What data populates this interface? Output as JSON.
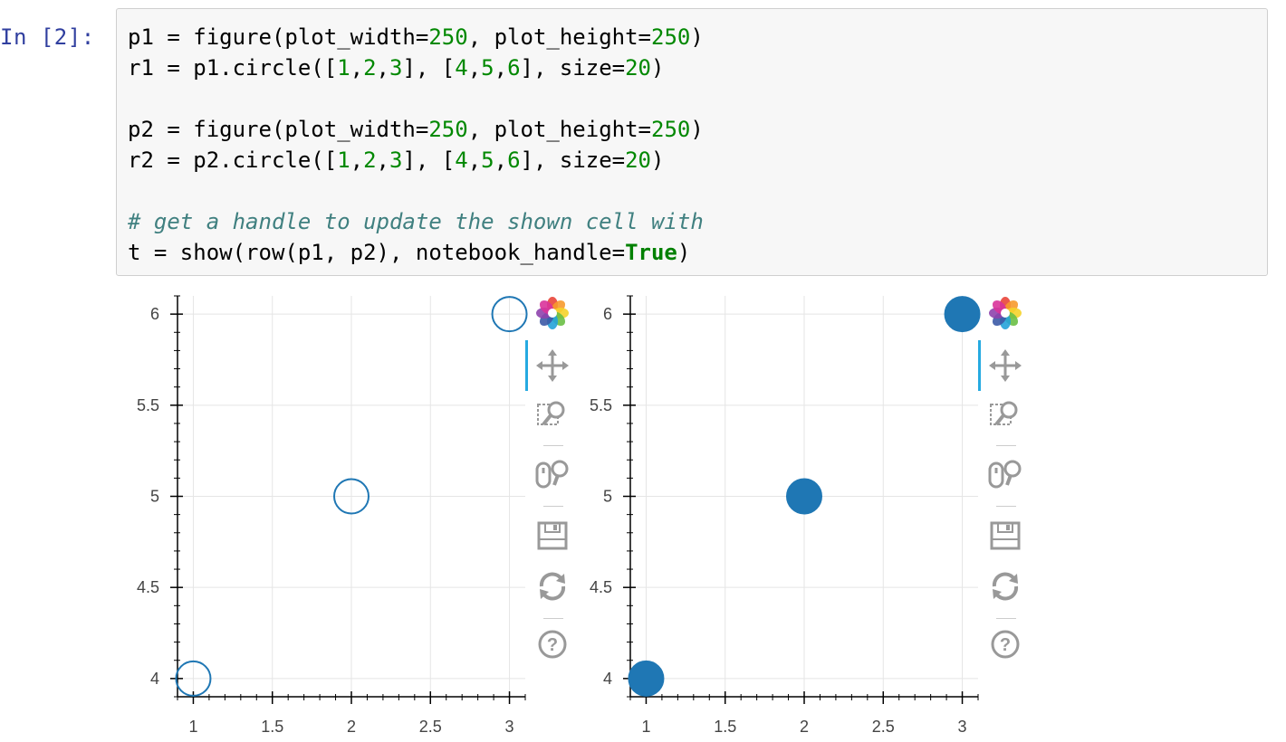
{
  "cell": {
    "prompt": "In [2]:",
    "code_lines": [
      [
        {
          "t": "p1 = figure(plot_width=",
          "c": "n"
        },
        {
          "t": "250",
          "c": "num"
        },
        {
          "t": ", plot_height=",
          "c": "n"
        },
        {
          "t": "250",
          "c": "num"
        },
        {
          "t": ")",
          "c": "n"
        }
      ],
      [
        {
          "t": "r1 = p1.circle([",
          "c": "n"
        },
        {
          "t": "1",
          "c": "num"
        },
        {
          "t": ",",
          "c": "n"
        },
        {
          "t": "2",
          "c": "num"
        },
        {
          "t": ",",
          "c": "n"
        },
        {
          "t": "3",
          "c": "num"
        },
        {
          "t": "], [",
          "c": "n"
        },
        {
          "t": "4",
          "c": "num"
        },
        {
          "t": ",",
          "c": "n"
        },
        {
          "t": "5",
          "c": "num"
        },
        {
          "t": ",",
          "c": "n"
        },
        {
          "t": "6",
          "c": "num"
        },
        {
          "t": "], size=",
          "c": "n"
        },
        {
          "t": "20",
          "c": "num"
        },
        {
          "t": ")",
          "c": "n"
        }
      ],
      [],
      [
        {
          "t": "p2 = figure(plot_width=",
          "c": "n"
        },
        {
          "t": "250",
          "c": "num"
        },
        {
          "t": ", plot_height=",
          "c": "n"
        },
        {
          "t": "250",
          "c": "num"
        },
        {
          "t": ")",
          "c": "n"
        }
      ],
      [
        {
          "t": "r2 = p2.circle([",
          "c": "n"
        },
        {
          "t": "1",
          "c": "num"
        },
        {
          "t": ",",
          "c": "n"
        },
        {
          "t": "2",
          "c": "num"
        },
        {
          "t": ",",
          "c": "n"
        },
        {
          "t": "3",
          "c": "num"
        },
        {
          "t": "], [",
          "c": "n"
        },
        {
          "t": "4",
          "c": "num"
        },
        {
          "t": ",",
          "c": "n"
        },
        {
          "t": "5",
          "c": "num"
        },
        {
          "t": ",",
          "c": "n"
        },
        {
          "t": "6",
          "c": "num"
        },
        {
          "t": "], size=",
          "c": "n"
        },
        {
          "t": "20",
          "c": "num"
        },
        {
          "t": ")",
          "c": "n"
        }
      ],
      [],
      [
        {
          "t": "# get a handle to update the shown cell with",
          "c": "cm"
        }
      ],
      [
        {
          "t": "t = show(row(p1, p2), notebook_handle=",
          "c": "n"
        },
        {
          "t": "True",
          "c": "kw"
        },
        {
          "t": ")",
          "c": "n"
        }
      ]
    ]
  },
  "toolbar": {
    "tools": [
      {
        "name": "bokeh-logo-icon"
      },
      {
        "name": "pan-tool-icon",
        "active": true
      },
      {
        "name": "box-zoom-tool-icon"
      },
      {
        "name": "wheel-zoom-tool-icon"
      },
      {
        "name": "save-tool-icon"
      },
      {
        "name": "reset-tool-icon"
      },
      {
        "name": "help-tool-icon"
      }
    ],
    "active_color": "#26aae1"
  },
  "chart_data": [
    {
      "type": "scatter",
      "marker": "circle-outline",
      "color": "#1f77b4",
      "x": [
        1,
        2,
        3
      ],
      "y": [
        4,
        5,
        6
      ],
      "x_ticks": [
        "1",
        "1.5",
        "2",
        "2.5",
        "3"
      ],
      "y_ticks": [
        "4",
        "4.5",
        "5",
        "5.5",
        "6"
      ],
      "xlim": [
        0.9,
        3.1
      ],
      "ylim": [
        3.9,
        6.1
      ],
      "grid": true
    },
    {
      "type": "scatter",
      "marker": "circle-filled",
      "color": "#1f77b4",
      "x": [
        1,
        2,
        3
      ],
      "y": [
        4,
        5,
        6
      ],
      "x_ticks": [
        "1",
        "1.5",
        "2",
        "2.5",
        "3"
      ],
      "y_ticks": [
        "4",
        "4.5",
        "5",
        "5.5",
        "6"
      ],
      "xlim": [
        0.9,
        3.1
      ],
      "ylim": [
        3.9,
        6.1
      ],
      "grid": true
    }
  ]
}
